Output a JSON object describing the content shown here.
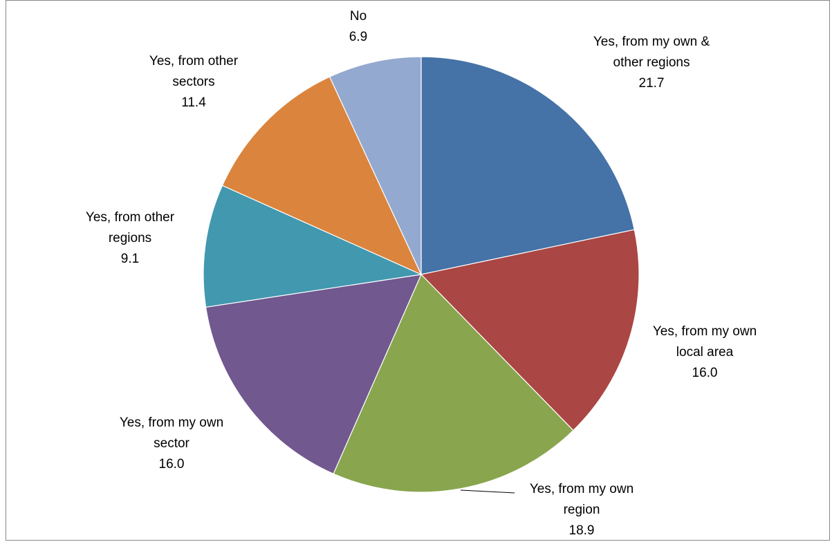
{
  "chart_data": {
    "type": "pie",
    "title": "",
    "slices": [
      {
        "label_lines": [
          "Yes, from my own &",
          "other regions"
        ],
        "value": 21.7,
        "value_label": "21.7",
        "color": "#4572A7"
      },
      {
        "label_lines": [
          "Yes, from my own",
          "local area"
        ],
        "value": 16.0,
        "value_label": "16.0",
        "color": "#AA4643"
      },
      {
        "label_lines": [
          "Yes, from my own",
          "region"
        ],
        "value": 18.9,
        "value_label": "18.9",
        "color": "#89A54E"
      },
      {
        "label_lines": [
          "Yes, from my own",
          "sector"
        ],
        "value": 16.0,
        "value_label": "16.0",
        "color": "#71588F"
      },
      {
        "label_lines": [
          "Yes, from other",
          "regions"
        ],
        "value": 9.1,
        "value_label": "9.1",
        "color": "#4198AF"
      },
      {
        "label_lines": [
          "Yes, from other",
          "sectors"
        ],
        "value": 11.4,
        "value_label": "11.4",
        "color": "#DB843D"
      },
      {
        "label_lines": [
          "No"
        ],
        "value": 6.9,
        "value_label": "6.9",
        "color": "#93A9CF"
      }
    ],
    "legend": "none",
    "data_labels": "category name and value"
  }
}
